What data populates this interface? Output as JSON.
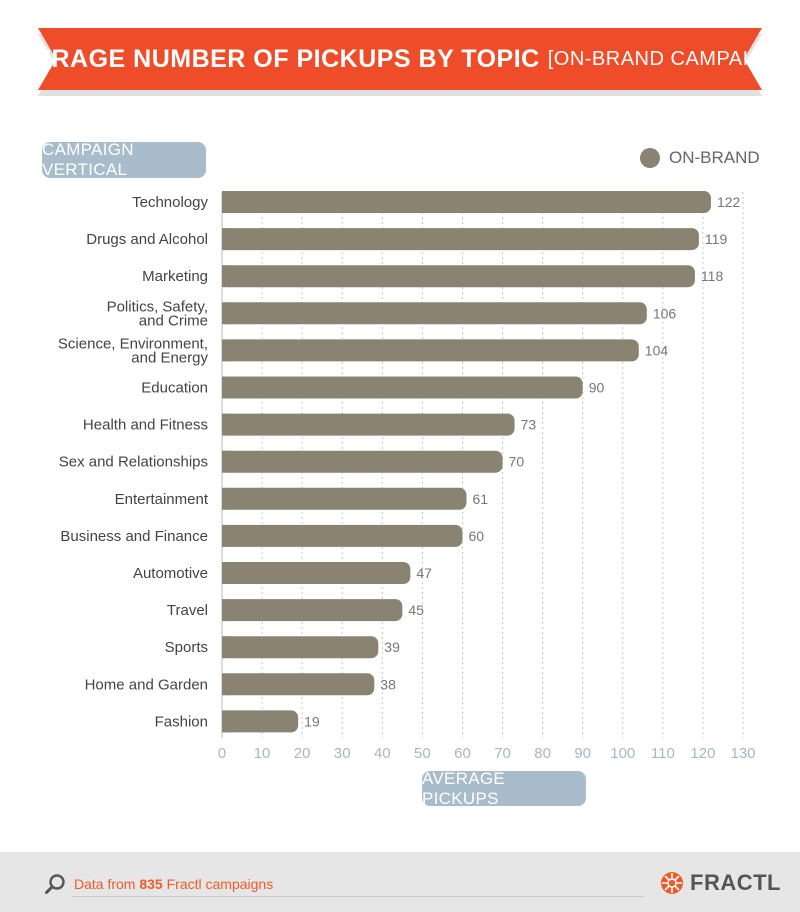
{
  "header": {
    "title": "AVERAGE NUMBER OF PICKUPS BY TOPIC",
    "subtitle": "[ON-BRAND CAMPAIGNS]"
  },
  "y_axis_pill": "CAMPAIGN VERTICAL",
  "x_axis_pill": "AVERAGE PICKUPS",
  "legend_label": "ON-BRAND",
  "colors": {
    "banner": "#ef4d2a",
    "bar": "#8b8371",
    "pill": "#a8bccb",
    "axis_text": "#a3b8c8",
    "footer_accent": "#f05b2a"
  },
  "footer": {
    "prefix": "Data from ",
    "count": "835",
    "suffix": " Fractl campaigns",
    "brand": "FRACTL"
  },
  "chart_data": {
    "type": "bar",
    "orientation": "horizontal",
    "categories": [
      "Technology",
      "Drugs and Alcohol",
      "Marketing",
      "Politics, Safety,\nand Crime",
      "Science, Environment,\nand Energy",
      "Education",
      "Health and Fitness",
      "Sex and Relationships",
      "Entertainment",
      "Business and Finance",
      "Automotive",
      "Travel",
      "Sports",
      "Home and Garden",
      "Fashion"
    ],
    "series": [
      {
        "name": "ON-BRAND",
        "values": [
          122,
          119,
          118,
          106,
          104,
          90,
          73,
          70,
          61,
          60,
          47,
          45,
          39,
          38,
          19
        ]
      }
    ],
    "xlim": [
      0,
      130
    ],
    "xticks": [
      0,
      10,
      20,
      30,
      40,
      50,
      60,
      70,
      80,
      90,
      100,
      110,
      120,
      130
    ],
    "grid": "vertical-dashed",
    "legend": "top-right",
    "xlabel": "AVERAGE PICKUPS",
    "ylabel": "CAMPAIGN VERTICAL"
  }
}
